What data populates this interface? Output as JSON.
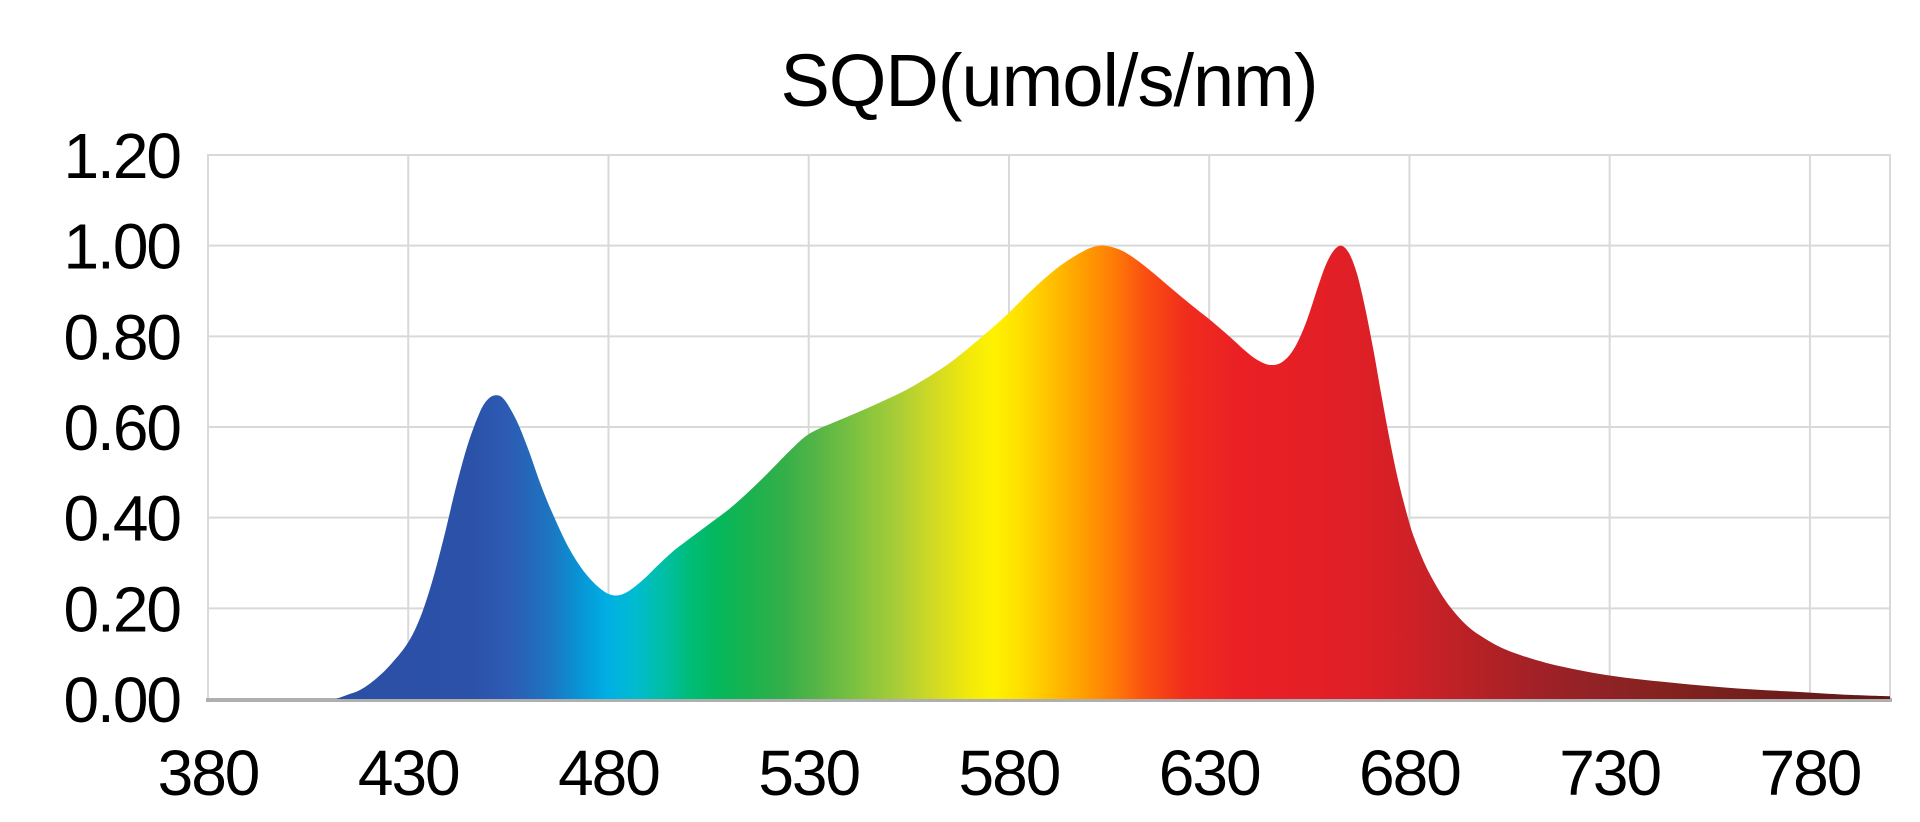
{
  "page": {
    "background": "#ffffff"
  },
  "chart_data": {
    "type": "area",
    "title": "SQD(umol/s/nm)",
    "xlabel": "",
    "ylabel": "",
    "x_unit": "nm",
    "xlim": [
      380,
      800
    ],
    "ylim": [
      0,
      1.2
    ],
    "grid": true,
    "legend": false,
    "x_ticks": [
      {
        "value": 380,
        "label": "380"
      },
      {
        "value": 430,
        "label": "430"
      },
      {
        "value": 480,
        "label": "480"
      },
      {
        "value": 530,
        "label": "530"
      },
      {
        "value": 580,
        "label": "580"
      },
      {
        "value": 630,
        "label": "630"
      },
      {
        "value": 680,
        "label": "680"
      },
      {
        "value": 730,
        "label": "730"
      },
      {
        "value": 780,
        "label": "780"
      }
    ],
    "y_ticks": [
      {
        "value": 0.0,
        "label": "0.00"
      },
      {
        "value": 0.2,
        "label": "0.20"
      },
      {
        "value": 0.4,
        "label": "0.40"
      },
      {
        "value": 0.6,
        "label": "0.60"
      },
      {
        "value": 0.8,
        "label": "0.80"
      },
      {
        "value": 1.0,
        "label": "1.00"
      },
      {
        "value": 1.2,
        "label": "1.20"
      }
    ],
    "colors": {
      "grid": "#D9D9D9",
      "axis_line": "#AFAFAF",
      "text": "#000000",
      "background": "#FFFFFF"
    },
    "notable_features": {
      "blue_peak": {
        "nm": 452,
        "value": 0.67
      },
      "blue_dip": {
        "nm": 481,
        "value": 0.23
      },
      "green_shoulder": {
        "nm": 531,
        "value": 0.59
      },
      "main_peak": {
        "nm": 602,
        "value": 1.0
      },
      "red_valley": {
        "nm": 645,
        "value": 0.74
      },
      "red_peak": {
        "nm": 662,
        "value": 1.0
      },
      "tail_end": {
        "nm": 800,
        "value": 0.01
      }
    },
    "spectrum_gradient": [
      {
        "nm": 380,
        "color": "#2B4DA2"
      },
      {
        "nm": 445,
        "color": "#2B51A8"
      },
      {
        "nm": 455,
        "color": "#2D5BB4"
      },
      {
        "nm": 465,
        "color": "#1D74C0"
      },
      {
        "nm": 473,
        "color": "#0795D6"
      },
      {
        "nm": 480,
        "color": "#00B0E4"
      },
      {
        "nm": 487,
        "color": "#00BCCE"
      },
      {
        "nm": 494,
        "color": "#00BFA3"
      },
      {
        "nm": 501,
        "color": "#00BC74"
      },
      {
        "nm": 508,
        "color": "#06B75B"
      },
      {
        "nm": 516,
        "color": "#1CB24E"
      },
      {
        "nm": 524,
        "color": "#35AF4A"
      },
      {
        "nm": 532,
        "color": "#55B546"
      },
      {
        "nm": 542,
        "color": "#7DC240"
      },
      {
        "nm": 552,
        "color": "#A8CD36"
      },
      {
        "nm": 562,
        "color": "#D4DB22"
      },
      {
        "nm": 570,
        "color": "#F2E90B"
      },
      {
        "nm": 576,
        "color": "#FFF200"
      },
      {
        "nm": 583,
        "color": "#FFDF00"
      },
      {
        "nm": 591,
        "color": "#FFBE00"
      },
      {
        "nm": 599,
        "color": "#FF9C00"
      },
      {
        "nm": 606,
        "color": "#FF7C06"
      },
      {
        "nm": 614,
        "color": "#FA5011"
      },
      {
        "nm": 624,
        "color": "#F12D1D"
      },
      {
        "nm": 637,
        "color": "#EA2024"
      },
      {
        "nm": 658,
        "color": "#E41F26"
      },
      {
        "nm": 670,
        "color": "#DC2026"
      },
      {
        "nm": 685,
        "color": "#C82127"
      },
      {
        "nm": 700,
        "color": "#B22126"
      },
      {
        "nm": 715,
        "color": "#9D2127"
      },
      {
        "nm": 730,
        "color": "#8E2225"
      },
      {
        "nm": 745,
        "color": "#83221F"
      },
      {
        "nm": 762,
        "color": "#75201D"
      },
      {
        "nm": 780,
        "color": "#6A1B1B"
      },
      {
        "nm": 800,
        "color": "#601818"
      }
    ],
    "series": [
      {
        "name": "SQD",
        "fill": "spectrum",
        "points": [
          [
            412,
            0.0
          ],
          [
            415,
            0.01
          ],
          [
            418,
            0.02
          ],
          [
            422,
            0.045
          ],
          [
            426,
            0.08
          ],
          [
            430,
            0.125
          ],
          [
            433,
            0.18
          ],
          [
            436,
            0.26
          ],
          [
            439,
            0.36
          ],
          [
            442,
            0.47
          ],
          [
            445,
            0.565
          ],
          [
            448,
            0.635
          ],
          [
            450,
            0.662
          ],
          [
            452,
            0.67
          ],
          [
            454,
            0.66
          ],
          [
            457,
            0.615
          ],
          [
            460,
            0.55
          ],
          [
            463,
            0.475
          ],
          [
            466,
            0.41
          ],
          [
            470,
            0.335
          ],
          [
            474,
            0.28
          ],
          [
            478,
            0.243
          ],
          [
            481,
            0.229
          ],
          [
            484,
            0.233
          ],
          [
            488,
            0.258
          ],
          [
            492,
            0.292
          ],
          [
            496,
            0.325
          ],
          [
            500,
            0.352
          ],
          [
            505,
            0.385
          ],
          [
            510,
            0.418
          ],
          [
            515,
            0.457
          ],
          [
            520,
            0.5
          ],
          [
            525,
            0.545
          ],
          [
            529,
            0.578
          ],
          [
            532,
            0.594
          ],
          [
            536,
            0.609
          ],
          [
            540,
            0.624
          ],
          [
            545,
            0.643
          ],
          [
            550,
            0.663
          ],
          [
            555,
            0.685
          ],
          [
            560,
            0.711
          ],
          [
            565,
            0.74
          ],
          [
            570,
            0.775
          ],
          [
            575,
            0.812
          ],
          [
            580,
            0.852
          ],
          [
            585,
            0.896
          ],
          [
            590,
            0.936
          ],
          [
            594,
            0.963
          ],
          [
            598,
            0.985
          ],
          [
            601,
            0.997
          ],
          [
            604,
            1.0
          ],
          [
            608,
            0.99
          ],
          [
            612,
            0.968
          ],
          [
            616,
            0.94
          ],
          [
            620,
            0.91
          ],
          [
            625,
            0.873
          ],
          [
            630,
            0.838
          ],
          [
            635,
            0.8
          ],
          [
            639,
            0.768
          ],
          [
            642,
            0.748
          ],
          [
            645,
            0.737
          ],
          [
            648,
            0.742
          ],
          [
            651,
            0.77
          ],
          [
            654,
            0.826
          ],
          [
            657,
            0.905
          ],
          [
            659,
            0.955
          ],
          [
            661,
            0.988
          ],
          [
            663,
            1.0
          ],
          [
            665,
            0.982
          ],
          [
            667,
            0.935
          ],
          [
            669,
            0.86
          ],
          [
            671,
            0.77
          ],
          [
            673,
            0.67
          ],
          [
            675,
            0.575
          ],
          [
            677,
            0.49
          ],
          [
            679,
            0.42
          ],
          [
            681,
            0.36
          ],
          [
            684,
            0.295
          ],
          [
            687,
            0.245
          ],
          [
            690,
            0.205
          ],
          [
            694,
            0.165
          ],
          [
            698,
            0.138
          ],
          [
            703,
            0.113
          ],
          [
            708,
            0.096
          ],
          [
            714,
            0.08
          ],
          [
            720,
            0.068
          ],
          [
            727,
            0.056
          ],
          [
            734,
            0.047
          ],
          [
            742,
            0.039
          ],
          [
            750,
            0.032
          ],
          [
            758,
            0.026
          ],
          [
            766,
            0.021
          ],
          [
            774,
            0.017
          ],
          [
            782,
            0.013
          ],
          [
            790,
            0.009
          ],
          [
            800,
            0.006
          ]
        ]
      }
    ]
  }
}
